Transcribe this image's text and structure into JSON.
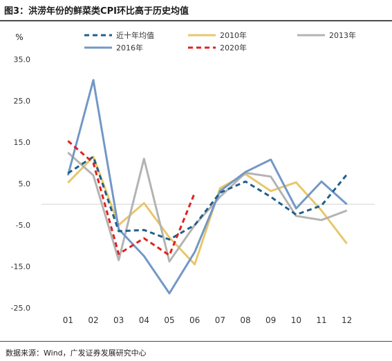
{
  "header": {
    "title": "图3：洪涝年份的鲜菜类CPI环比高于历史均值"
  },
  "footer": {
    "source": "数据来源：Wind，广发证券发展研究中心"
  },
  "chart_data": {
    "type": "line",
    "ylabel": "%",
    "ylim": [
      -25,
      35
    ],
    "yticks": [
      "35.0",
      "25.0",
      "15.0",
      "5.0",
      "-5.0",
      "-15.0",
      "-25.0"
    ],
    "ytick_values": [
      35,
      25,
      15,
      5,
      -5,
      -15,
      -25
    ],
    "categories": [
      "01",
      "02",
      "03",
      "04",
      "05",
      "06",
      "07",
      "08",
      "09",
      "10",
      "11",
      "12"
    ],
    "grid": false,
    "zero_line": true,
    "legend_position": "top",
    "series": [
      {
        "name": "近十年均值",
        "color": "#1f5f8b",
        "dash": "dashed",
        "values": [
          7.5,
          11.5,
          -6.5,
          -6.2,
          -8.5,
          -5,
          2.8,
          5.5,
          1.8,
          -2.5,
          -0.3,
          7.2
        ]
      },
      {
        "name": "2010年",
        "color": "#e7c76b",
        "dash": "solid",
        "values": [
          5.2,
          11.5,
          -5,
          0.3,
          -8,
          -14.5,
          3.9,
          7.3,
          3.2,
          5.3,
          -1.5,
          -9.5
        ]
      },
      {
        "name": "2013年",
        "color": "#b3b3b3",
        "dash": "solid",
        "values": [
          12.5,
          7,
          -13.5,
          11,
          -13.8,
          -5,
          1.8,
          7.6,
          6.7,
          -2.8,
          -3.8,
          -1.5
        ]
      },
      {
        "name": "2016年",
        "color": "#7397c6",
        "dash": "solid",
        "values": [
          7,
          30,
          -6,
          -12.5,
          -21.5,
          -11.5,
          3.2,
          7.8,
          10.8,
          -1,
          5.5,
          0
        ]
      },
      {
        "name": "2020年",
        "color": "#e02020",
        "dash": "dashed",
        "values": [
          15.3,
          10,
          -12,
          -8.2,
          -12.3,
          2.8,
          null,
          null,
          null,
          null,
          null,
          null
        ]
      }
    ]
  }
}
